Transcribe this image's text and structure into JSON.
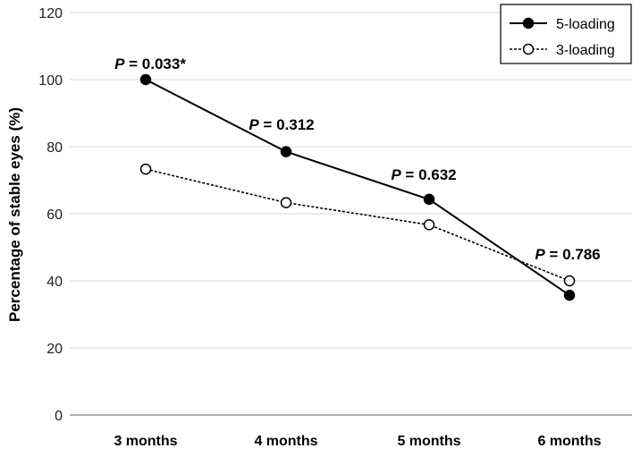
{
  "chart_data": {
    "type": "line",
    "title": "",
    "xlabel": "",
    "ylabel": "Percentage of stable eyes (%)",
    "ylim": [
      0,
      120
    ],
    "yticks": [
      0,
      20,
      40,
      60,
      80,
      100,
      120
    ],
    "grid": true,
    "legend_position": "top-right",
    "categories": [
      "3 months",
      "4 months",
      "5 months",
      "6 months"
    ],
    "series": [
      {
        "name": "5-loading",
        "values": [
          100,
          78.5,
          64.3,
          35.7
        ],
        "line_style": "solid",
        "marker": "filled-circle",
        "color": "#000000"
      },
      {
        "name": "3-loading",
        "values": [
          73.3,
          63.3,
          56.7,
          40
        ],
        "line_style": "dotted",
        "marker": "open-circle",
        "color": "#000000"
      }
    ],
    "annotations": [
      {
        "category": "3 months",
        "p_label": "P",
        "rest": " = 0.033*"
      },
      {
        "category": "4 months",
        "p_label": "P",
        "rest": " = 0.312"
      },
      {
        "category": "5 months",
        "p_label": "P",
        "rest": " = 0.632"
      },
      {
        "category": "6 months",
        "p_label": "P",
        "rest": " = 0.786"
      }
    ]
  }
}
